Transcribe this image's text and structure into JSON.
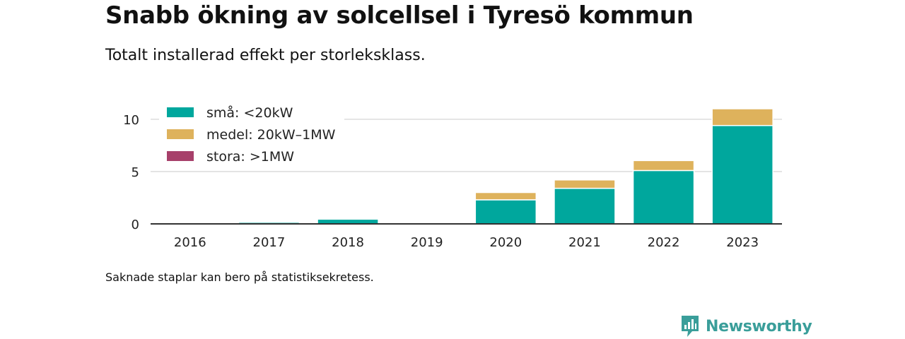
{
  "title": "Snabb ökning av solcellsel i Tyresö kommun",
  "subtitle": "Totalt installerad effekt per storleksklass.",
  "note": "Saknade staplar kan bero på statistiksekretess.",
  "brand": {
    "name": "Newsworthy",
    "icon": "newsworthy-logo-icon",
    "color": "#3a9e9a"
  },
  "chart_data": {
    "type": "bar",
    "stacked": true,
    "categories": [
      "2016",
      "2017",
      "2018",
      "2019",
      "2020",
      "2021",
      "2022",
      "2023"
    ],
    "series": [
      {
        "name": "små: <20kW",
        "color": "#00a79d",
        "values": [
          0,
          0.15,
          0.45,
          0,
          2.3,
          3.4,
          5.1,
          9.4
        ]
      },
      {
        "name": "medel: 20kW–1MW",
        "color": "#deb25c",
        "values": [
          0,
          0,
          0,
          0,
          0.7,
          0.8,
          0.95,
          1.6
        ]
      },
      {
        "name": "stora: >1MW",
        "color": "#a7406a",
        "values": [
          0,
          0,
          0,
          0,
          0,
          0,
          0,
          0
        ]
      }
    ],
    "y_ticks": [
      0,
      5,
      10
    ],
    "ylim": [
      0,
      11
    ],
    "grid": true,
    "legend_position": "top-left"
  }
}
